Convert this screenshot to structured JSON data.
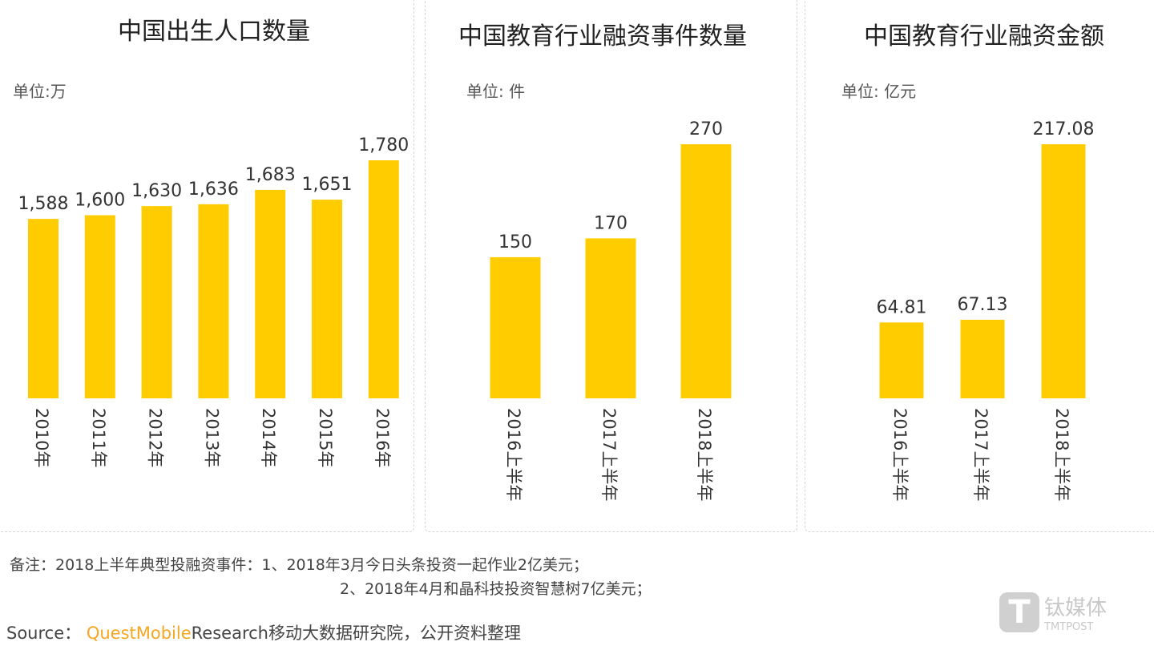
{
  "chart_data": [
    {
      "type": "bar",
      "title": "中国出生人口数量",
      "unit": "单位:万",
      "categories": [
        "2010年",
        "2011年",
        "2012年",
        "2013年",
        "2014年",
        "2015年",
        "2016年"
      ],
      "values": [
        1588,
        1600,
        1630,
        1636,
        1683,
        1651,
        1780
      ],
      "value_labels": [
        "1,588",
        "1,600",
        "1,630",
        "1,636",
        "1,683",
        "1,651",
        "1,780"
      ],
      "ylim": [
        1000,
        1800
      ],
      "color": "#ffcc00",
      "grid": false
    },
    {
      "type": "bar",
      "title": "中国教育行业融资事件数量",
      "unit": "单位: 件",
      "categories": [
        "2016上半年",
        "2017上半年",
        "2018上半年"
      ],
      "values": [
        150,
        170,
        270
      ],
      "value_labels": [
        "150",
        "170",
        "270"
      ],
      "ylim": [
        0,
        300
      ],
      "color": "#ffcc00",
      "grid": false
    },
    {
      "type": "bar",
      "title": "中国教育行业融资金额",
      "unit": "单位: 亿元",
      "categories": [
        "2016上半年",
        "2017上半年",
        "2018上半年"
      ],
      "values": [
        64.81,
        67.13,
        217.08
      ],
      "value_labels": [
        "64.81",
        "67.13",
        "217.08"
      ],
      "ylim": [
        0,
        230
      ],
      "color": "#ffcc00",
      "grid": false
    }
  ],
  "notes": {
    "line1": "备注：2018上半年典型投融资事件：1、2018年3月今日头条投资一起作业2亿美元；",
    "line2": "2、2018年4月和晶科技投资智慧树7亿美元；"
  },
  "source": {
    "label": "Source：",
    "brand": "QuestMobile",
    "text": "Research移动大数据研究院，公开资料整理"
  },
  "watermark": {
    "logo": "T",
    "name": "钛媒体",
    "sub": "TMTPOST"
  }
}
